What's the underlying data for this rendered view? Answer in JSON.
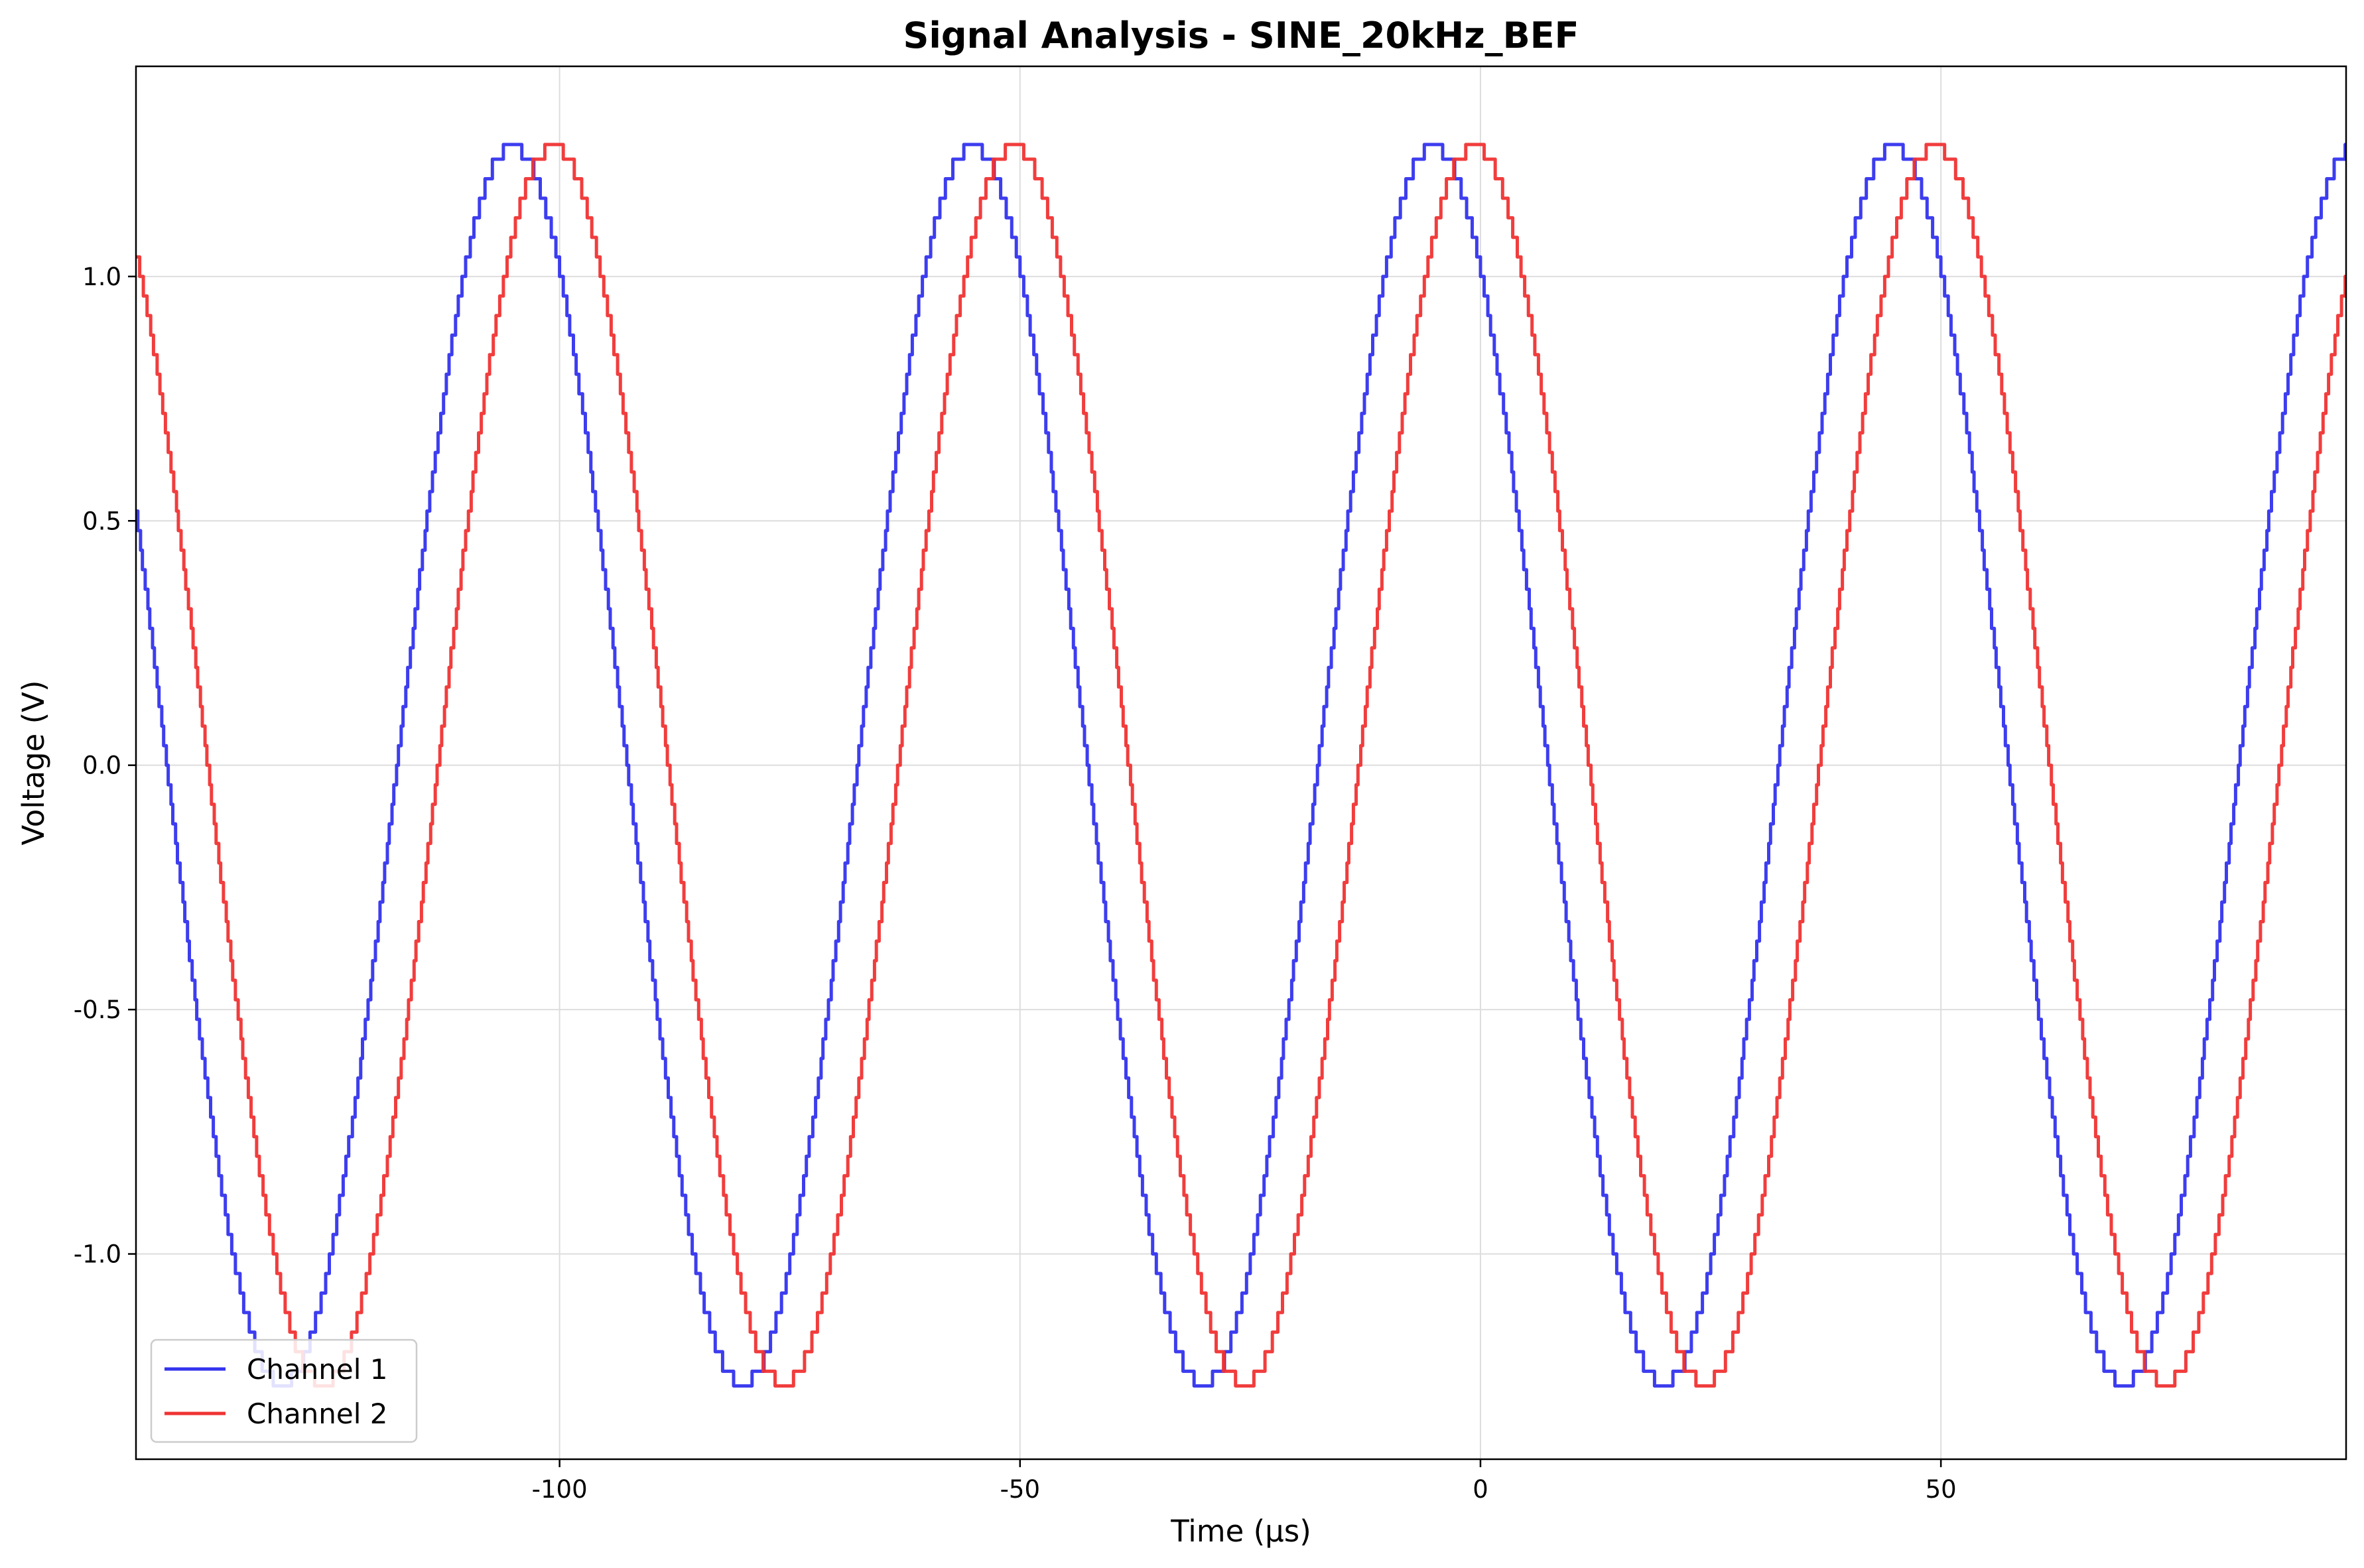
{
  "chart_data": {
    "type": "line",
    "title": "Signal Analysis - SINE_20kHz_BEF",
    "xlabel": "Time (µs)",
    "ylabel": "Voltage (V)",
    "xlim": [
      -146,
      94
    ],
    "ylim": [
      -1.42,
      1.43
    ],
    "x_ticks": [
      -100,
      -50,
      0,
      50
    ],
    "x_tick_labels": [
      "-100",
      "-50",
      "0",
      "50"
    ],
    "y_ticks": [
      1.0,
      0.5,
      0.0,
      -0.5,
      -1.0
    ],
    "y_tick_labels": [
      "1.0",
      "0.5",
      "0.0",
      "-0.5",
      "-1.0"
    ],
    "grid": true,
    "legend_position": "lower-left",
    "signal": {
      "frequency_khz": 20,
      "amplitude_v": 1.27,
      "quantization_step_v": 0.04
    },
    "series": [
      {
        "name": "Channel 1",
        "color": "#3333ee",
        "phase_deg": 127
      },
      {
        "name": "Channel 2",
        "color": "#f03333",
        "phase_deg": 95
      }
    ]
  }
}
